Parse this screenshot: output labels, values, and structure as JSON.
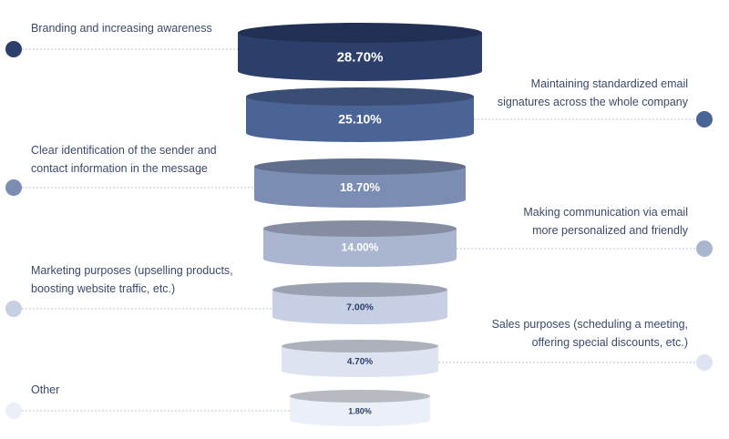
{
  "chart_data": {
    "type": "funnel",
    "unit": "%",
    "title": "",
    "categories": [
      "Branding and increasing awareness",
      "Maintaining standardized email signatures across the whole company",
      "Clear identification of the sender and contact information in the message",
      "Making communication via email more personalized and friendly",
      "Marketing purposes (upselling products, boosting website traffic, etc.)",
      "Sales purposes (scheduling a meeting, offering special discounts, etc.)",
      "Other"
    ],
    "values": [
      28.7,
      25.1,
      18.7,
      14.0,
      7.0,
      4.7,
      1.8
    ],
    "value_labels": [
      "28.70%",
      "25.10%",
      "18.70%",
      "14.00%",
      "7.00%",
      "4.70%",
      "1.80%"
    ],
    "label_lines": [
      [
        "Branding and increasing awareness"
      ],
      [
        "Maintaining standardized email",
        "signatures across the whole company"
      ],
      [
        "Clear identification of the sender and",
        "contact information in the message"
      ],
      [
        "Making communication via email",
        "more personalized and friendly"
      ],
      [
        "Marketing purposes (upselling products,",
        "boosting website traffic, etc.)"
      ],
      [
        "Sales purposes (scheduling a meeting,",
        "offering special discounts, etc.)"
      ],
      [
        "Other"
      ]
    ],
    "label_sides": [
      "left",
      "right",
      "left",
      "right",
      "left",
      "right",
      "left"
    ],
    "colors": [
      "#2c3f6b",
      "#4a6496",
      "#7b8db3",
      "#aab5d0",
      "#c6cfe3",
      "#dde3f0",
      "#ebeff7"
    ],
    "value_text_colors": [
      "#ffffff",
      "#ffffff",
      "#ffffff",
      "#ffffff",
      "#2c3f6b",
      "#2c3f6b",
      "#2c3f6b"
    ],
    "label_color": "#3a4a6b"
  }
}
